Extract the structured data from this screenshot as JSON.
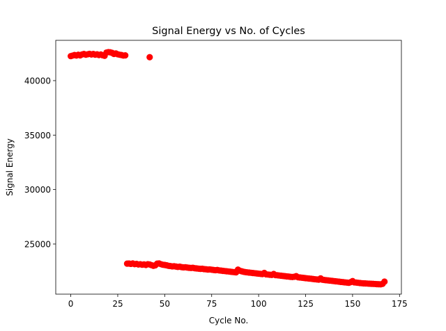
{
  "chart_data": {
    "type": "scatter",
    "title": "Signal Energy vs No. of Cycles",
    "xlabel": "Cycle No.",
    "ylabel": "Signal Energy",
    "xlim": [
      -8,
      176
    ],
    "ylim": [
      20400,
      43700
    ],
    "xticks": [
      0,
      25,
      50,
      75,
      100,
      125,
      150,
      175
    ],
    "yticks": [
      25000,
      30000,
      35000,
      40000
    ],
    "grid": false,
    "legend": "none",
    "marker_color": "#ff0000",
    "series": [
      {
        "points": [
          [
            0,
            42250
          ],
          [
            1,
            42300
          ],
          [
            2,
            42350
          ],
          [
            3,
            42300
          ],
          [
            4,
            42380
          ],
          [
            5,
            42320
          ],
          [
            6,
            42400
          ],
          [
            7,
            42450
          ],
          [
            8,
            42380
          ],
          [
            9,
            42420
          ],
          [
            10,
            42460
          ],
          [
            11,
            42400
          ],
          [
            12,
            42450
          ],
          [
            13,
            42380
          ],
          [
            14,
            42420
          ],
          [
            15,
            42350
          ],
          [
            16,
            42400
          ],
          [
            17,
            42330
          ],
          [
            18,
            42280
          ],
          [
            19,
            42580
          ],
          [
            20,
            42620
          ],
          [
            21,
            42600
          ],
          [
            22,
            42550
          ],
          [
            23,
            42450
          ],
          [
            24,
            42500
          ],
          [
            25,
            42420
          ],
          [
            26,
            42380
          ],
          [
            27,
            42350
          ],
          [
            28,
            42300
          ],
          [
            29,
            42320
          ],
          [
            42,
            42150
          ],
          [
            30,
            23200
          ],
          [
            31,
            23210
          ],
          [
            32,
            23180
          ],
          [
            33,
            23220
          ],
          [
            34,
            23150
          ],
          [
            35,
            23180
          ],
          [
            36,
            23120
          ],
          [
            37,
            23150
          ],
          [
            38,
            23100
          ],
          [
            39,
            23130
          ],
          [
            40,
            23080
          ],
          [
            41,
            23150
          ],
          [
            42,
            23120
          ],
          [
            43,
            23060
          ],
          [
            44,
            23000
          ],
          [
            45,
            23050
          ],
          [
            46,
            23200
          ],
          [
            47,
            23220
          ],
          [
            48,
            23150
          ],
          [
            49,
            23100
          ],
          [
            50,
            23080
          ],
          [
            51,
            23050
          ],
          [
            52,
            23000
          ],
          [
            53,
            22980
          ],
          [
            54,
            22950
          ],
          [
            55,
            22960
          ],
          [
            56,
            22930
          ],
          [
            57,
            22900
          ],
          [
            58,
            22920
          ],
          [
            59,
            22880
          ],
          [
            60,
            22860
          ],
          [
            61,
            22870
          ],
          [
            62,
            22840
          ],
          [
            63,
            22820
          ],
          [
            64,
            22800
          ],
          [
            65,
            22820
          ],
          [
            66,
            22780
          ],
          [
            67,
            22760
          ],
          [
            68,
            22740
          ],
          [
            69,
            22720
          ],
          [
            70,
            22730
          ],
          [
            71,
            22700
          ],
          [
            72,
            22680
          ],
          [
            73,
            22660
          ],
          [
            74,
            22670
          ],
          [
            75,
            22640
          ],
          [
            76,
            22620
          ],
          [
            77,
            22600
          ],
          [
            78,
            22620
          ],
          [
            79,
            22580
          ],
          [
            80,
            22560
          ],
          [
            81,
            22540
          ],
          [
            82,
            22520
          ],
          [
            83,
            22500
          ],
          [
            84,
            22480
          ],
          [
            85,
            22460
          ],
          [
            86,
            22440
          ],
          [
            87,
            22420
          ],
          [
            88,
            22400
          ],
          [
            89,
            22650
          ],
          [
            90,
            22550
          ],
          [
            91,
            22500
          ],
          [
            92,
            22450
          ],
          [
            93,
            22420
          ],
          [
            94,
            22400
          ],
          [
            95,
            22380
          ],
          [
            96,
            22360
          ],
          [
            97,
            22340
          ],
          [
            98,
            22320
          ],
          [
            99,
            22300
          ],
          [
            100,
            22280
          ],
          [
            101,
            22260
          ],
          [
            102,
            22240
          ],
          [
            103,
            22350
          ],
          [
            104,
            22220
          ],
          [
            105,
            22200
          ],
          [
            106,
            22180
          ],
          [
            107,
            22160
          ],
          [
            108,
            22250
          ],
          [
            109,
            22150
          ],
          [
            110,
            22130
          ],
          [
            111,
            22110
          ],
          [
            112,
            22090
          ],
          [
            113,
            22070
          ],
          [
            114,
            22050
          ],
          [
            115,
            22030
          ],
          [
            116,
            22010
          ],
          [
            117,
            21990
          ],
          [
            118,
            21970
          ],
          [
            119,
            22000
          ],
          [
            120,
            22050
          ],
          [
            121,
            21950
          ],
          [
            122,
            21930
          ],
          [
            123,
            21910
          ],
          [
            124,
            21890
          ],
          [
            125,
            21870
          ],
          [
            126,
            21850
          ],
          [
            127,
            21830
          ],
          [
            128,
            21810
          ],
          [
            129,
            21790
          ],
          [
            130,
            21770
          ],
          [
            131,
            21750
          ],
          [
            132,
            21730
          ],
          [
            133,
            21850
          ],
          [
            134,
            21720
          ],
          [
            135,
            21700
          ],
          [
            136,
            21680
          ],
          [
            137,
            21660
          ],
          [
            138,
            21640
          ],
          [
            139,
            21620
          ],
          [
            140,
            21600
          ],
          [
            141,
            21580
          ],
          [
            142,
            21560
          ],
          [
            143,
            21540
          ],
          [
            144,
            21520
          ],
          [
            145,
            21500
          ],
          [
            146,
            21480
          ],
          [
            147,
            21460
          ],
          [
            148,
            21440
          ],
          [
            149,
            21500
          ],
          [
            150,
            21600
          ],
          [
            151,
            21480
          ],
          [
            152,
            21460
          ],
          [
            153,
            21440
          ],
          [
            154,
            21420
          ],
          [
            155,
            21400
          ],
          [
            156,
            21390
          ],
          [
            157,
            21380
          ],
          [
            158,
            21370
          ],
          [
            159,
            21360
          ],
          [
            160,
            21350
          ],
          [
            161,
            21340
          ],
          [
            162,
            21330
          ],
          [
            163,
            21320
          ],
          [
            164,
            21310
          ],
          [
            165,
            21300
          ],
          [
            166,
            21350
          ],
          [
            167,
            21550
          ]
        ]
      }
    ]
  }
}
